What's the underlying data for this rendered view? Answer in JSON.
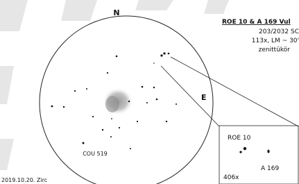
{
  "sketch": {
    "north_label": "N",
    "east_label": "E",
    "cou_label": "COU 519"
  },
  "header": {
    "title": "ROE 10 & A 169 Vul",
    "telescope": "203/2032 SC",
    "settings": "113x, LM ~ 30'",
    "diagonal": "zenittükör"
  },
  "inset": {
    "roe_label": "ROE 10",
    "a_label": "A 169",
    "magnification": "406x"
  },
  "footer": {
    "date": "2019.10.20. Zirc"
  }
}
